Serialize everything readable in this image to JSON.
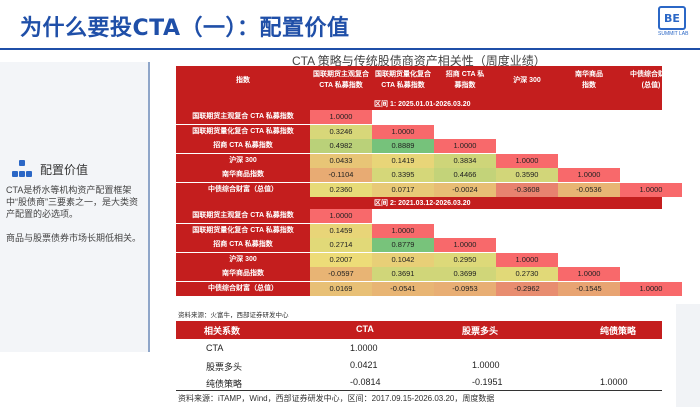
{
  "slide": {
    "title": "为什么要投CTA（一）：配置价值",
    "logo_text": "BE",
    "logo_sub": "SUMMIT LAB"
  },
  "sidebar": {
    "heading": "配置价值",
    "para1": "CTA是桥水等机构资产配置框架中“股债商”三要素之一，是大类资产配置的必选项。",
    "para2": "商品与股票债券市场长期低相关。"
  },
  "chart": {
    "title": "CTA 策略与传统股债商资产相关性（周度业绩）",
    "col_headers": [
      [
        "指数"
      ],
      [
        "国联期货主观复合",
        "CTA 私募指数"
      ],
      [
        "国联期货量化复合",
        "CTA 私募指数"
      ],
      [
        "招商 CTA 私",
        "募指数"
      ],
      [
        "沪深 300"
      ],
      [
        "南华商品",
        "指数"
      ],
      [
        "中债综合财富",
        "(总值)"
      ]
    ],
    "row_labels": [
      "国联期货主观复合 CTA 私募指数",
      "国联期货量化复合 CTA 私募指数",
      "招商 CTA 私募指数",
      "沪深 300",
      "南华商品指数",
      "中债综合财富（总值）"
    ],
    "periods": [
      {
        "label": "区间 1: 2025.01.01-2026.03.20",
        "matrix": [
          [
            "1.0000"
          ],
          [
            "0.3246",
            "1.0000"
          ],
          [
            "0.4982",
            "0.8889",
            "1.0000"
          ],
          [
            "0.0433",
            "0.1419",
            "0.3834",
            "1.0000"
          ],
          [
            "-0.1104",
            "0.3395",
            "0.4466",
            "0.3590",
            "1.0000"
          ],
          [
            "0.2360",
            "0.0717",
            "-0.0024",
            "-0.3608",
            "-0.0536",
            "1.0000"
          ]
        ]
      },
      {
        "label": "区间 2: 2021.03.12-2026.03.20",
        "matrix": [
          [
            "1.0000"
          ],
          [
            "0.1459",
            "1.0000"
          ],
          [
            "0.2714",
            "0.8779",
            "1.0000"
          ],
          [
            "0.2007",
            "0.1042",
            "0.2950",
            "1.0000"
          ],
          [
            "-0.0597",
            "0.3691",
            "0.3699",
            "0.2730",
            "1.0000"
          ],
          [
            "0.0169",
            "-0.0541",
            "-0.0953",
            "-0.2962",
            "-0.1545",
            "1.0000"
          ]
        ]
      }
    ],
    "source1": "资料来源：火富牛，西部证券研发中心"
  },
  "summary": {
    "headers": [
      "相关系数",
      "CTA",
      "股票多头",
      "纯债策略"
    ],
    "rows": [
      [
        "CTA",
        "1.0000",
        "",
        ""
      ],
      [
        "股票多头",
        "0.0421",
        "1.0000",
        ""
      ],
      [
        "纯债策略",
        "-0.0814",
        "-0.1951",
        "1.0000"
      ]
    ],
    "source": "资料来源：iTAMP，Wind，西部证券研发中心，区间：2017.09.15-2026.03.20，周度数据"
  },
  "colors": {
    "header_red": "#c41e1e",
    "title_blue": "#1f4fa8"
  }
}
